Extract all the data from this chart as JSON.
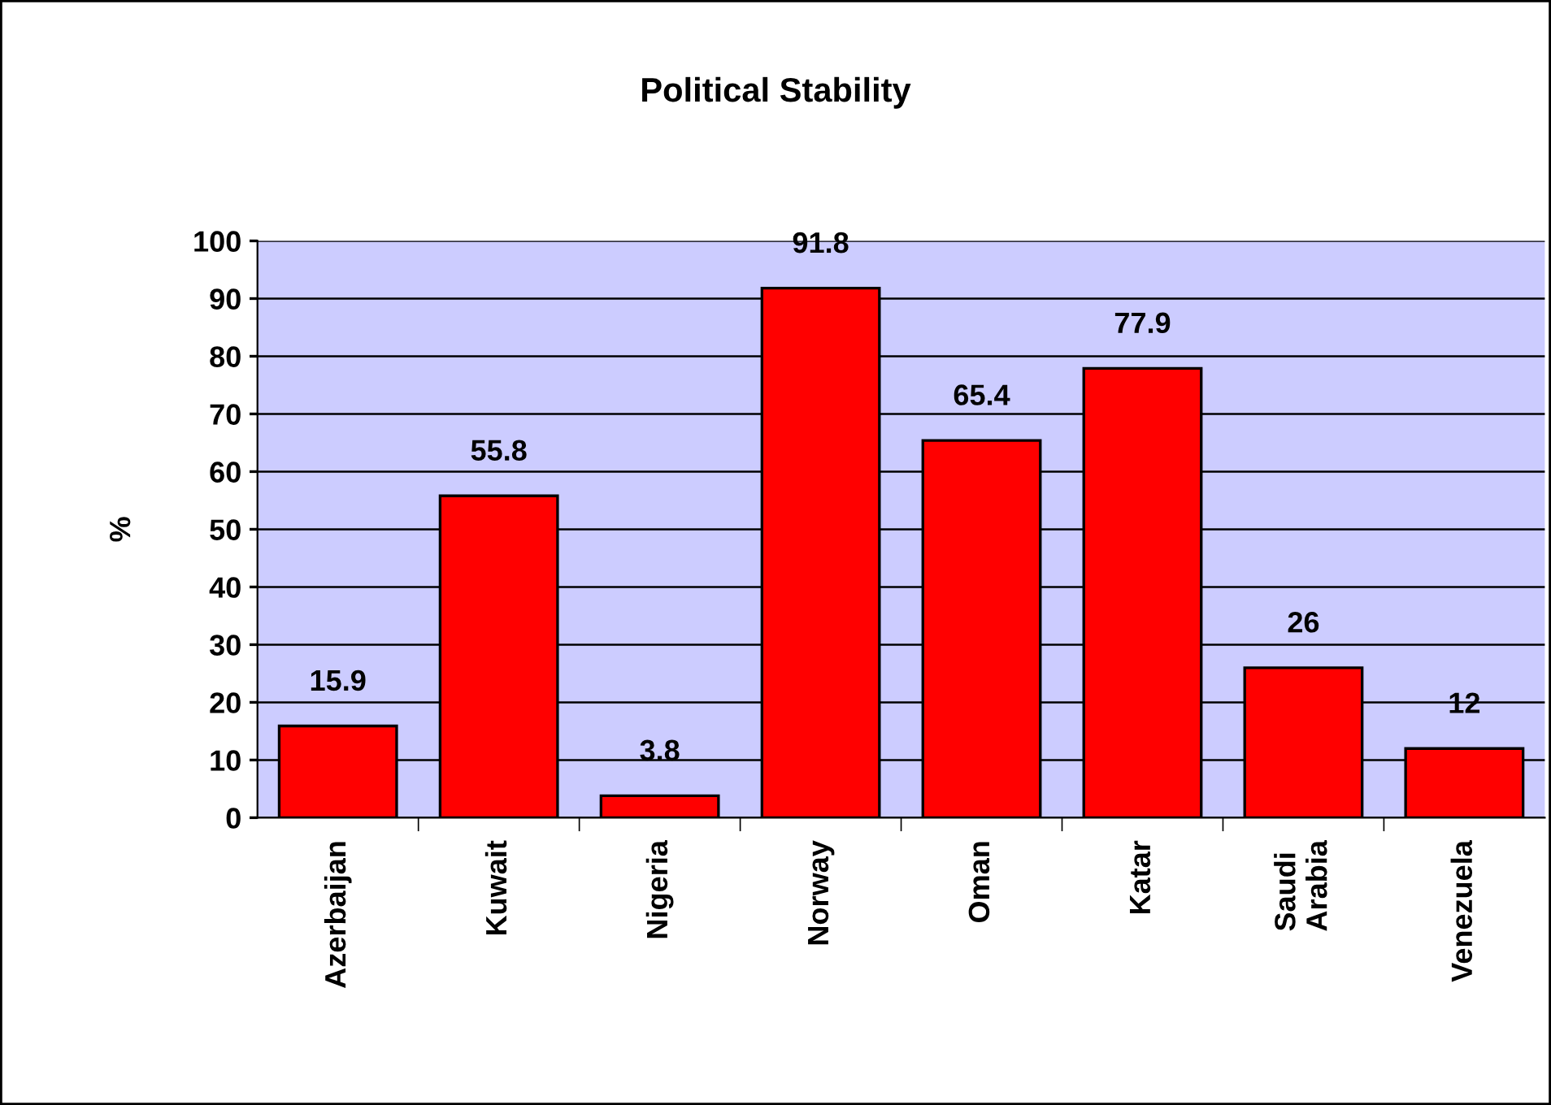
{
  "chart_data": {
    "type": "bar",
    "title": "Political Stability",
    "ylabel": "%",
    "categories": [
      "Azerbaijan",
      "Kuwait",
      "Nigeria",
      "Norway",
      "Oman",
      "Katar",
      "Saudi\nArabia",
      "Venezuela"
    ],
    "values": [
      15.9,
      55.8,
      3.8,
      91.8,
      65.4,
      77.9,
      26,
      12
    ],
    "color": "#ff0000",
    "ylim": [
      0,
      100
    ],
    "yticks": [
      0,
      10,
      20,
      30,
      40,
      50,
      60,
      70,
      80,
      90,
      100
    ],
    "grid": "y",
    "data_labels": true,
    "legend": false
  }
}
